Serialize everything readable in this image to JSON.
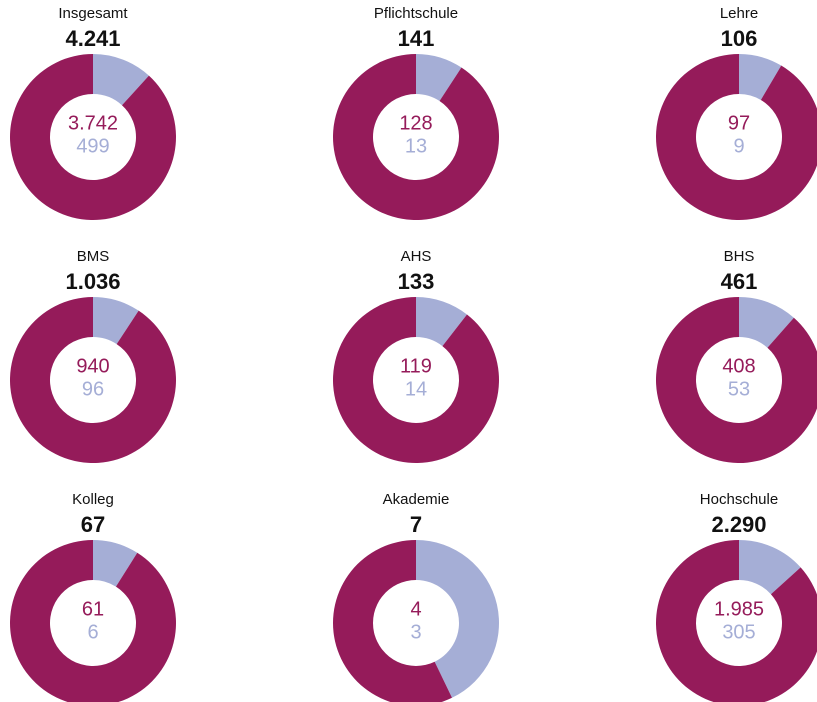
{
  "chart_data": [
    {
      "type": "pie",
      "title": "Insgesamt",
      "total": 4241,
      "total_label": "4.241",
      "values": [
        3742,
        499
      ],
      "value_labels": [
        "3.742",
        "499"
      ],
      "colors": [
        "#951b5a",
        "#a5aed6"
      ]
    },
    {
      "type": "pie",
      "title": "Pflichtschule",
      "total": 141,
      "values": [
        128,
        13
      ],
      "colors": [
        "#951b5a",
        "#a5aed6"
      ]
    },
    {
      "type": "pie",
      "title": "Lehre",
      "total": 106,
      "values": [
        97,
        9
      ],
      "colors": [
        "#951b5a",
        "#a5aed6"
      ]
    },
    {
      "type": "pie",
      "title": "BMS",
      "total": 1036,
      "total_label": "1.036",
      "values": [
        940,
        96
      ],
      "colors": [
        "#951b5a",
        "#a5aed6"
      ]
    },
    {
      "type": "pie",
      "title": "AHS",
      "total": 133,
      "values": [
        119,
        14
      ],
      "colors": [
        "#951b5a",
        "#a5aed6"
      ]
    },
    {
      "type": "pie",
      "title": "BHS",
      "total": 461,
      "values": [
        408,
        53
      ],
      "colors": [
        "#951b5a",
        "#a5aed6"
      ]
    },
    {
      "type": "pie",
      "title": "Kolleg",
      "total": 67,
      "values": [
        61,
        6
      ],
      "colors": [
        "#951b5a",
        "#a5aed6"
      ]
    },
    {
      "type": "pie",
      "title": "Akademie",
      "total": 7,
      "values": [
        4,
        3
      ],
      "colors": [
        "#951b5a",
        "#a5aed6"
      ]
    },
    {
      "type": "pie",
      "title": "Hochschule",
      "total": 2290,
      "total_label": "2.290",
      "values": [
        1985,
        305
      ],
      "value_labels": [
        "1.985",
        "305"
      ],
      "colors": [
        "#951b5a",
        "#a5aed6"
      ]
    }
  ]
}
